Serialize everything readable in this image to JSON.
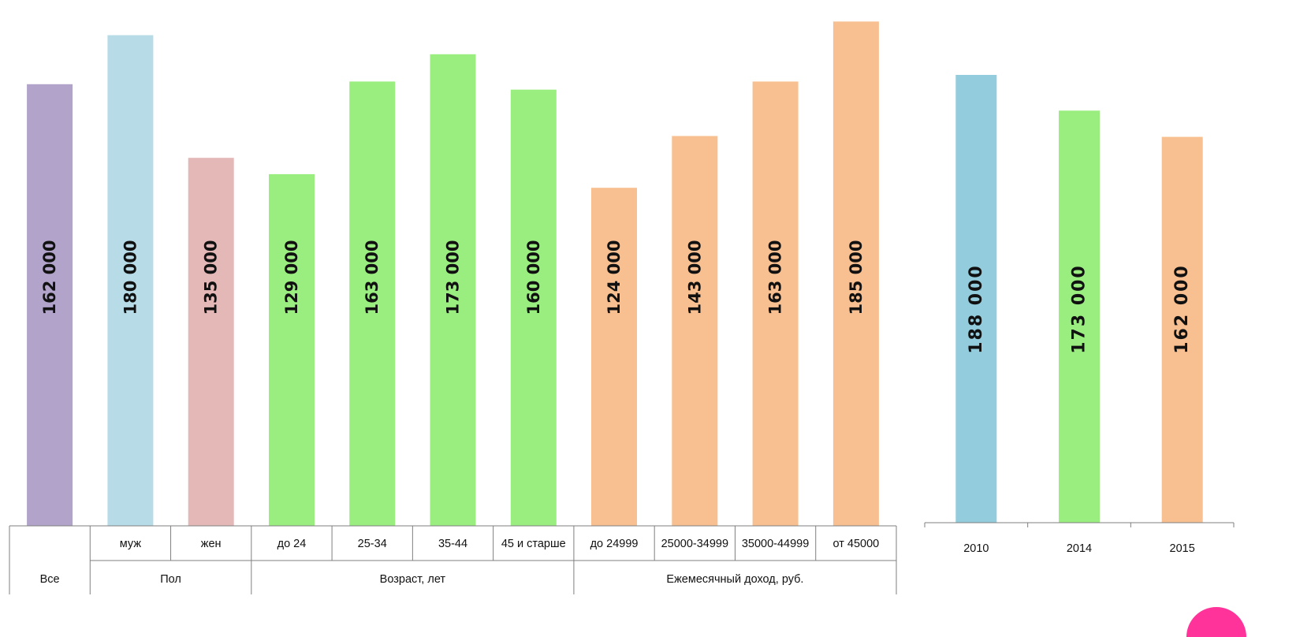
{
  "chart_data": [
    {
      "type": "bar",
      "categories": [
        "",
        "муж",
        "жен",
        "до 24",
        "25-34",
        "35-44",
        "45 и старше",
        "до 24999",
        "25000-34999",
        "35000-44999",
        "от 45000"
      ],
      "groups": [
        {
          "label": "Все",
          "start": 0,
          "end": 0
        },
        {
          "label": "Пол",
          "start": 1,
          "end": 2
        },
        {
          "label": "Возраст, лет",
          "start": 3,
          "end": 6
        },
        {
          "label": "Ежемесячный доход, руб.",
          "start": 7,
          "end": 10
        }
      ],
      "values": [
        162000,
        180000,
        135000,
        129000,
        163000,
        173000,
        160000,
        124000,
        143000,
        163000,
        185000
      ],
      "value_labels": [
        "162 000",
        "180 000",
        "135 000",
        "129 000",
        "163 000",
        "173 000",
        "160 000",
        "124 000",
        "143 000",
        "163 000",
        "185 000"
      ],
      "colors": [
        "#b1a3c9",
        "#b7dce8",
        "#e5b8b8",
        "#99ee7f",
        "#99ee7f",
        "#99ee7f",
        "#99ee7f",
        "#f8c091",
        "#f8c091",
        "#f8c091",
        "#f8c091"
      ],
      "ylim": [
        0,
        190000
      ],
      "grid": false
    },
    {
      "type": "bar",
      "categories": [
        "2010",
        "2014",
        "2015"
      ],
      "values": [
        188000,
        173000,
        162000
      ],
      "value_labels": [
        "188 000",
        "173 000",
        "162 000"
      ],
      "colors": [
        "#93cddd",
        "#99ee7f",
        "#f8c091"
      ],
      "ylim": [
        0,
        220000
      ],
      "grid": false
    }
  ],
  "decor": {
    "accent_circle_color": "#ff3399"
  }
}
